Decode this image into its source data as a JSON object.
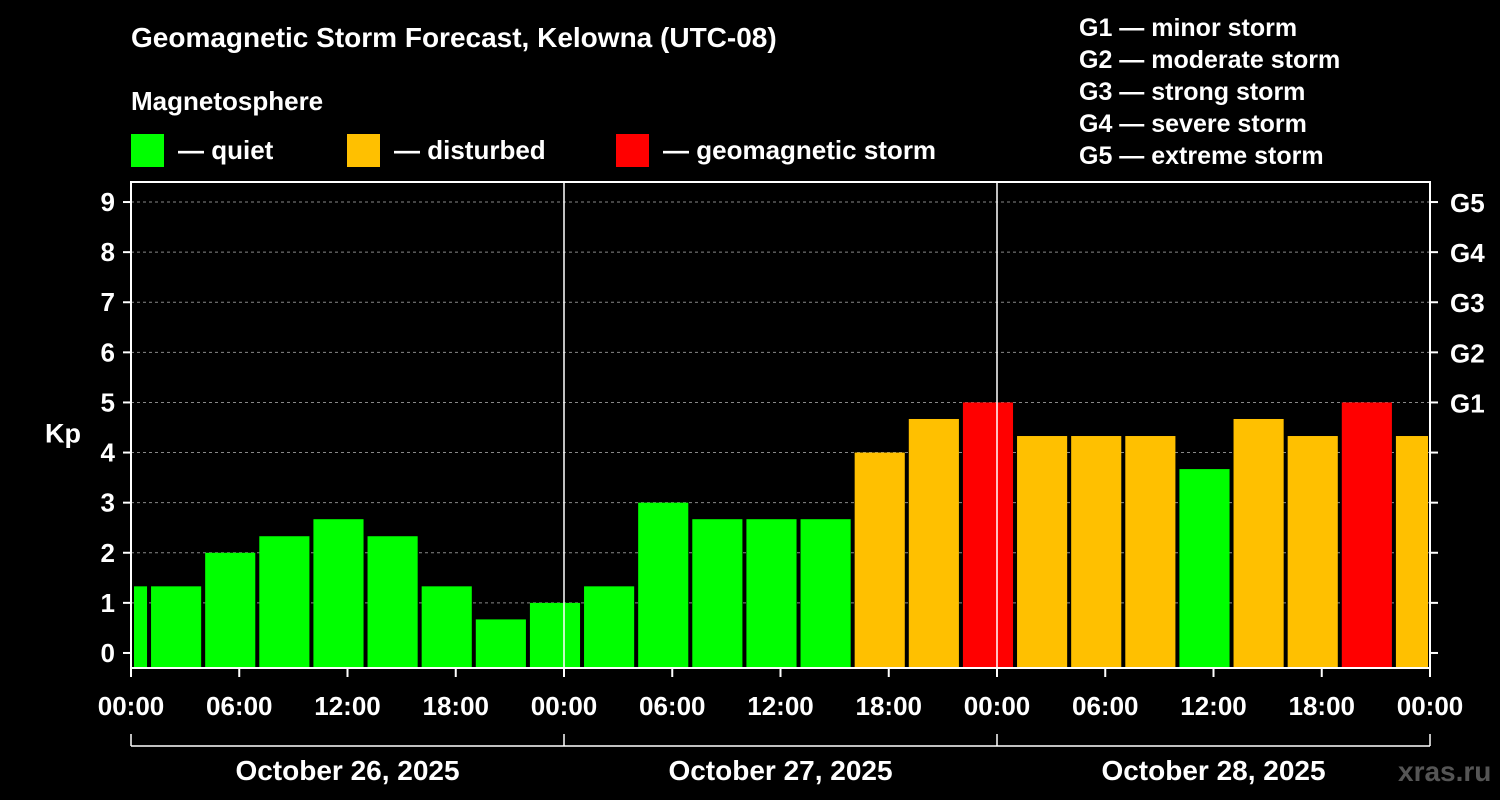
{
  "chart_data": {
    "type": "bar",
    "title": "Geomagnetic Storm Forecast, Kelowna (UTC-08)",
    "subtitle": "Magnetosphere",
    "ylabel": "Kp",
    "ylim": [
      -0.3,
      9.4
    ],
    "yticks": [
      0,
      1,
      2,
      3,
      4,
      5,
      6,
      7,
      8,
      9
    ],
    "right_ticks": [
      {
        "kp": 5,
        "label": "G1"
      },
      {
        "kp": 6,
        "label": "G2"
      },
      {
        "kp": 7,
        "label": "G3"
      },
      {
        "kp": 8,
        "label": "G4"
      },
      {
        "kp": 9,
        "label": "G5"
      }
    ],
    "x_hour_range": [
      0,
      72
    ],
    "xticks": [
      {
        "hour": 0,
        "label": "00:00"
      },
      {
        "hour": 6,
        "label": "06:00"
      },
      {
        "hour": 12,
        "label": "12:00"
      },
      {
        "hour": 18,
        "label": "18:00"
      },
      {
        "hour": 24,
        "label": "00:00"
      },
      {
        "hour": 30,
        "label": "06:00"
      },
      {
        "hour": 36,
        "label": "12:00"
      },
      {
        "hour": 42,
        "label": "18:00"
      },
      {
        "hour": 48,
        "label": "00:00"
      },
      {
        "hour": 54,
        "label": "06:00"
      },
      {
        "hour": 60,
        "label": "12:00"
      },
      {
        "hour": 66,
        "label": "18:00"
      },
      {
        "hour": 72,
        "label": "00:00"
      }
    ],
    "days": [
      {
        "label": "October 26, 2025",
        "start": 0,
        "end": 24
      },
      {
        "label": "October 27, 2025",
        "start": 24,
        "end": 48
      },
      {
        "label": "October 28, 2025",
        "start": 48,
        "end": 72
      }
    ],
    "grid": true,
    "bars": [
      {
        "start": 0,
        "end": 1,
        "kp": 1.33,
        "level": "quiet"
      },
      {
        "start": 1,
        "end": 4,
        "kp": 1.33,
        "level": "quiet"
      },
      {
        "start": 4,
        "end": 7,
        "kp": 2.0,
        "level": "quiet"
      },
      {
        "start": 7,
        "end": 10,
        "kp": 2.33,
        "level": "quiet"
      },
      {
        "start": 10,
        "end": 13,
        "kp": 2.67,
        "level": "quiet"
      },
      {
        "start": 13,
        "end": 16,
        "kp": 2.33,
        "level": "quiet"
      },
      {
        "start": 16,
        "end": 19,
        "kp": 1.33,
        "level": "quiet"
      },
      {
        "start": 19,
        "end": 22,
        "kp": 0.67,
        "level": "quiet"
      },
      {
        "start": 22,
        "end": 25,
        "kp": 1.0,
        "level": "quiet"
      },
      {
        "start": 25,
        "end": 28,
        "kp": 1.33,
        "level": "quiet"
      },
      {
        "start": 28,
        "end": 31,
        "kp": 3.0,
        "level": "quiet"
      },
      {
        "start": 31,
        "end": 34,
        "kp": 2.67,
        "level": "quiet"
      },
      {
        "start": 34,
        "end": 37,
        "kp": 2.67,
        "level": "quiet"
      },
      {
        "start": 37,
        "end": 40,
        "kp": 2.67,
        "level": "quiet"
      },
      {
        "start": 40,
        "end": 43,
        "kp": 4.0,
        "level": "disturbed"
      },
      {
        "start": 43,
        "end": 46,
        "kp": 4.67,
        "level": "disturbed"
      },
      {
        "start": 46,
        "end": 49,
        "kp": 5.0,
        "level": "storm"
      },
      {
        "start": 49,
        "end": 52,
        "kp": 4.33,
        "level": "disturbed"
      },
      {
        "start": 52,
        "end": 55,
        "kp": 4.33,
        "level": "disturbed"
      },
      {
        "start": 55,
        "end": 58,
        "kp": 4.33,
        "level": "disturbed"
      },
      {
        "start": 58,
        "end": 61,
        "kp": 3.67,
        "level": "quiet"
      },
      {
        "start": 61,
        "end": 64,
        "kp": 4.67,
        "level": "disturbed"
      },
      {
        "start": 64,
        "end": 67,
        "kp": 4.33,
        "level": "disturbed"
      },
      {
        "start": 67,
        "end": 70,
        "kp": 5.0,
        "level": "storm"
      },
      {
        "start": 70,
        "end": 72,
        "kp": 4.33,
        "level": "disturbed"
      }
    ],
    "colors": {
      "quiet": "#00ff00",
      "disturbed": "#ffc000",
      "storm": "#ff0000"
    }
  },
  "legend": {
    "quiet": "— quiet",
    "disturbed": "— disturbed",
    "storm": "— geomagnetic storm"
  },
  "storm_scale": [
    "G1 — minor storm",
    "G2 — moderate storm",
    "G3 — strong storm",
    "G4 — severe storm",
    "G5 — extreme storm"
  ],
  "watermark": "xras.ru"
}
